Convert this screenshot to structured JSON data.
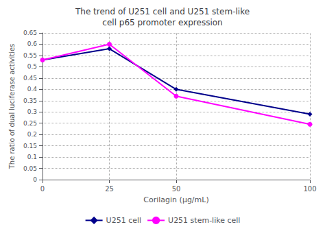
{
  "chart_data": {
    "type": "line",
    "title": "The trend of U251 cell and U251 stem-like\ncell p65 promoter expression",
    "x_label": "Corilagin (μg/mL)",
    "y_label": "The ratio of dual luciferase activities",
    "x": [
      0,
      25,
      50,
      100
    ],
    "series": [
      {
        "name": "U251 cell",
        "color": "#00008B",
        "marker": "diamond",
        "line_style": "solid",
        "values": [
          0.53,
          0.58,
          0.4,
          0.29
        ]
      },
      {
        "name": "U251 stem-like cell",
        "color": "#FF00FF",
        "marker": "circle",
        "line_style": "solid",
        "values": [
          0.53,
          0.6,
          0.37,
          0.245
        ]
      }
    ],
    "xlim": [
      0,
      100
    ],
    "xticks": [
      0,
      25,
      50,
      100
    ],
    "ylim": [
      0,
      0.65
    ],
    "yticks": [
      0,
      0.05,
      0.1,
      0.15,
      0.2,
      0.25,
      0.3,
      0.35,
      0.4,
      0.45,
      0.5,
      0.55,
      0.6,
      0.65
    ],
    "grid": true,
    "legend": "bottom"
  }
}
